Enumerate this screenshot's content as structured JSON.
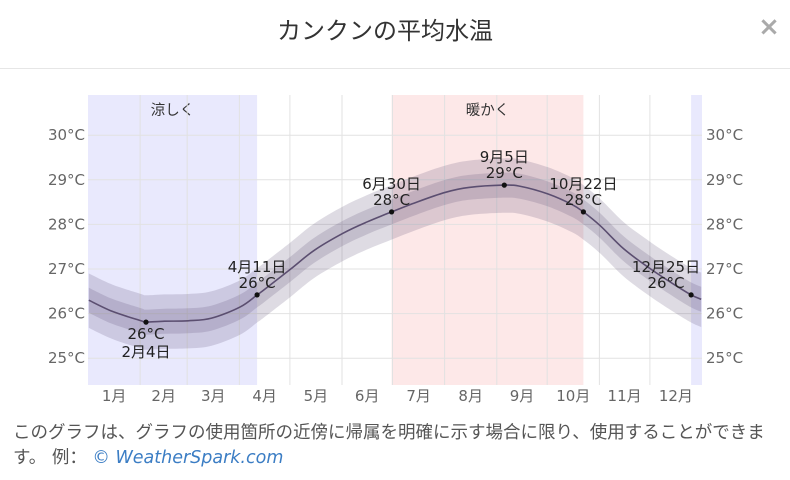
{
  "header": {
    "close_icon": "close-icon",
    "close_label": "×"
  },
  "chart_data": {
    "type": "line",
    "title": "カンクンの平均水温",
    "x_ticks": [
      "1月",
      "2月",
      "3月",
      "4月",
      "5月",
      "6月",
      "7月",
      "8月",
      "9月",
      "10月",
      "11月",
      "12月"
    ],
    "y_ticks": [
      "25°C",
      "26°C",
      "27°C",
      "28°C",
      "29°C",
      "30°C"
    ],
    "xlim": [
      "1月1日",
      "12月31日"
    ],
    "ylim": [
      24.4,
      30.9
    ],
    "grid": true,
    "dates": [
      "1月1日",
      "1月15日",
      "2月1日",
      "2月4日",
      "2月15日",
      "3月1日",
      "3月15日",
      "4月1日",
      "4月11日",
      "4月15日",
      "5月1日",
      "5月15日",
      "6月1日",
      "6月15日",
      "6月30日",
      "7月15日",
      "8月1日",
      "8月15日",
      "9月5日",
      "9月15日",
      "10月1日",
      "10月15日",
      "10月22日",
      "11月1日",
      "11月15日",
      "12月1日",
      "12月15日",
      "12月25日",
      "12月31日"
    ],
    "mean": [
      26.3,
      26.05,
      25.84,
      25.81,
      25.83,
      25.84,
      25.9,
      26.15,
      26.42,
      26.53,
      27.0,
      27.42,
      27.8,
      28.05,
      28.28,
      28.5,
      28.72,
      28.83,
      28.88,
      28.85,
      28.68,
      28.45,
      28.28,
      27.97,
      27.45,
      27.0,
      26.65,
      26.42,
      26.32
    ],
    "band_inner_low": [
      26.02,
      25.77,
      25.56,
      25.53,
      25.55,
      25.56,
      25.62,
      25.87,
      26.14,
      26.25,
      26.72,
      27.14,
      27.52,
      27.77,
      28.0,
      28.22,
      28.44,
      28.55,
      28.6,
      28.57,
      28.4,
      28.17,
      28.0,
      27.69,
      27.17,
      26.72,
      26.37,
      26.14,
      26.04
    ],
    "band_inner_high": [
      26.58,
      26.33,
      26.12,
      26.09,
      26.11,
      26.12,
      26.18,
      26.43,
      26.7,
      26.81,
      27.28,
      27.7,
      28.08,
      28.33,
      28.56,
      28.78,
      29.0,
      29.11,
      29.16,
      29.13,
      28.96,
      28.73,
      28.56,
      28.25,
      27.73,
      27.28,
      26.93,
      26.7,
      26.6
    ],
    "band_outer_low": [
      25.68,
      25.43,
      25.22,
      25.19,
      25.21,
      25.22,
      25.28,
      25.53,
      25.8,
      25.91,
      26.38,
      26.8,
      27.18,
      27.43,
      27.66,
      27.88,
      28.1,
      28.21,
      28.26,
      28.23,
      28.06,
      27.83,
      27.66,
      27.35,
      26.83,
      26.38,
      26.03,
      25.8,
      25.7
    ],
    "band_outer_high": [
      26.9,
      26.65,
      26.44,
      26.41,
      26.43,
      26.44,
      26.5,
      26.75,
      27.02,
      27.13,
      27.6,
      28.02,
      28.4,
      28.65,
      28.88,
      29.1,
      29.32,
      29.43,
      29.48,
      29.45,
      29.28,
      29.05,
      28.88,
      28.57,
      28.05,
      27.6,
      27.25,
      27.02,
      26.92
    ],
    "seasons": [
      {
        "label": "涼しく",
        "start": "12月25日",
        "end": "4月11日",
        "color": "#e9e9fd"
      },
      {
        "label": "暖かく",
        "start": "6月30日",
        "end": "10月22日",
        "color": "#fde8e8"
      }
    ],
    "annotations": [
      {
        "date": "2月4日",
        "value_label": "26°C"
      },
      {
        "date": "4月11日",
        "value_label": "26°C"
      },
      {
        "date": "6月30日",
        "value_label": "28°C"
      },
      {
        "date": "9月5日",
        "value_label": "29°C"
      },
      {
        "date": "10月22日",
        "value_label": "28°C"
      },
      {
        "date": "12月25日",
        "value_label": "26°C"
      }
    ],
    "colors": {
      "line": "#5b4e70",
      "inner_band": "#5a4b7333",
      "outer_band": "#5a4b7333",
      "point": "#111111"
    }
  },
  "caption": {
    "text": "このグラフは、グラフの使用箇所の近傍に帰属を明確に示す場合に限り、使用することができます。 例：",
    "link_text": "© WeatherSpark.com"
  },
  "colors": {
    "link": "#3b7dc4"
  }
}
